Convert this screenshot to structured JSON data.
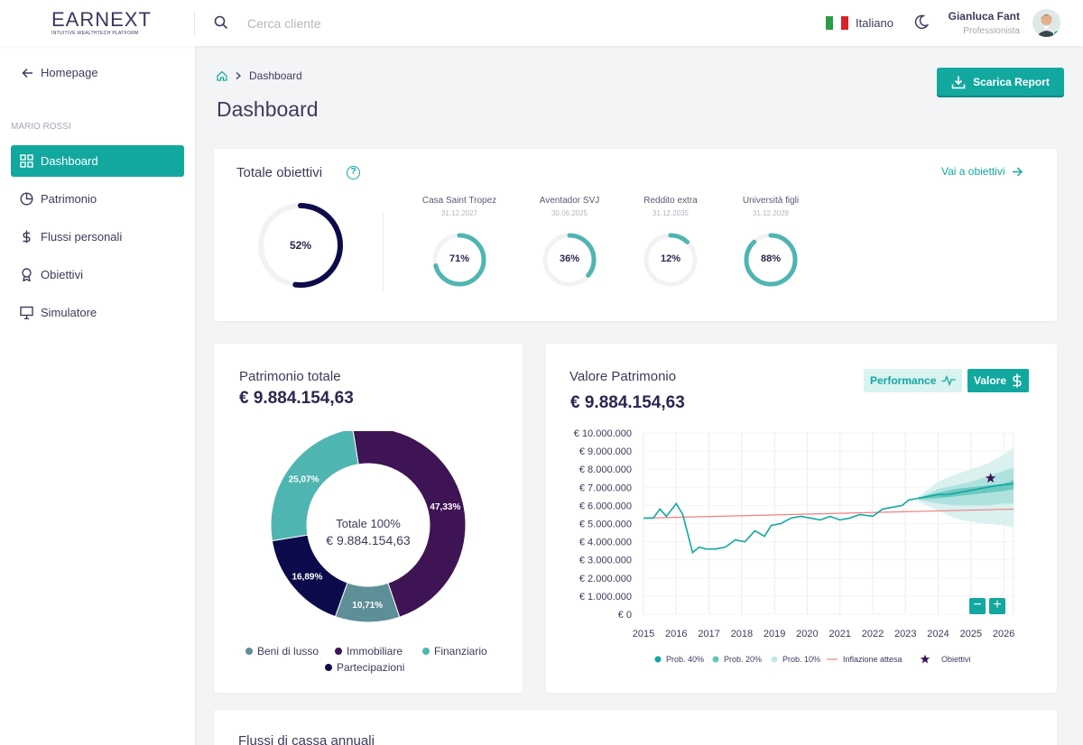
{
  "brand": {
    "name": "EARNEXT",
    "tagline": "INTUITIVE WEALTHTECH PLATFORM"
  },
  "search": {
    "placeholder": "Cerca cliente"
  },
  "header": {
    "language": "Italiano",
    "user_name": "Gianluca Fant",
    "user_role": "Professionista"
  },
  "sidebar": {
    "back_label": "Homepage",
    "client_name": "MARIO ROSSI",
    "items": [
      {
        "label": "Dashboard",
        "icon": "grid-icon",
        "active": true
      },
      {
        "label": "Patrimonio",
        "icon": "pie-icon"
      },
      {
        "label": "Flussi personali",
        "icon": "dollar-icon"
      },
      {
        "label": "Obiettivi",
        "icon": "medal-icon"
      },
      {
        "label": "Simulatore",
        "icon": "monitor-icon"
      }
    ]
  },
  "breadcrumb": {
    "current": "Dashboard"
  },
  "page": {
    "title": "Dashboard",
    "download_label": "Scarica Report"
  },
  "objectives": {
    "title": "Totale obiettivi",
    "link_label": "Vai a obiettivi",
    "total_label": "52%",
    "total_value": 0.52,
    "goals": [
      {
        "name": "Casa Saint Tropez",
        "date": "31.12.2027",
        "label": "71%",
        "value": 0.71
      },
      {
        "name": "Aventador SVJ",
        "date": "30.06.2025",
        "label": "36%",
        "value": 0.36
      },
      {
        "name": "Reddito extra",
        "date": "31.12.2035",
        "label": "12%",
        "value": 0.12
      },
      {
        "name": "Università figli",
        "date": "31.12.2029",
        "label": "88%",
        "value": 0.88
      }
    ]
  },
  "patrimonio": {
    "title": "Patrimonio totale",
    "amount": "€ 9.884.154,63",
    "center_label": "Totale 100%",
    "center_amount": "€ 9.884.154,63",
    "slices": [
      {
        "name": "Immobiliare",
        "label": "47,33%",
        "value": 47.33,
        "color": "#3e1455"
      },
      {
        "name": "Beni di lusso",
        "label": "10,71%",
        "value": 10.71,
        "color": "#5f8f96"
      },
      {
        "name": "Partecipazioni",
        "label": "16,89%",
        "value": 16.89,
        "color": "#0c0a4a"
      },
      {
        "name": "Finanziario",
        "label": "25,07%",
        "value": 25.07,
        "color": "#4fb5b0"
      }
    ],
    "legend": [
      "Beni di lusso",
      "Immobiliare",
      "Finanziario",
      "Partecipazioni"
    ]
  },
  "valore": {
    "title": "Valore Patrimonio",
    "amount": "€ 9.884.154,63",
    "toggle_performance": "Performance",
    "toggle_valore": "Valore"
  },
  "chart_data": {
    "type": "line",
    "y_ticks": [
      "€ 10.000.000",
      "€ 9.000.000",
      "€ 8.000.000",
      "€ 7.000.000",
      "€ 6.000.000",
      "€ 5.000.000",
      "€ 4.000.000",
      "€ 3.000.000",
      "€ 2.000.000",
      "€ 1.000.000",
      "€ 0"
    ],
    "x_ticks": [
      "2015",
      "2016",
      "2017",
      "2018",
      "2019",
      "2020",
      "2021",
      "2022",
      "2023",
      "2024",
      "2025",
      "2026"
    ],
    "ylim": [
      0,
      10000000
    ],
    "xlim": [
      2015,
      2026.3
    ],
    "series": [
      {
        "name": "Inflazione attesa",
        "color": "#f08080",
        "x": [
          2015,
          2026.3
        ],
        "y": [
          5300000,
          5800000
        ]
      },
      {
        "name": "Prob. 40%",
        "color": "#12a89f",
        "x": [
          2015,
          2015.3,
          2015.5,
          2015.7,
          2016.0,
          2016.2,
          2016.5,
          2016.7,
          2016.9,
          2017.2,
          2017.5,
          2017.8,
          2018.1,
          2018.4,
          2018.7,
          2018.9,
          2019.2,
          2019.5,
          2019.8,
          2020.1,
          2020.4,
          2020.7,
          2021.0,
          2021.3,
          2021.6,
          2022.0,
          2022.3,
          2022.6,
          2022.9,
          2023.1,
          2023.4,
          2023.7,
          2024.0,
          2024.3,
          2024.6,
          2024.9,
          2025.2,
          2025.5,
          2025.8,
          2026.3
        ],
        "y": [
          5300000,
          5300000,
          5800000,
          5400000,
          6100000,
          5500000,
          3400000,
          3700000,
          3600000,
          3600000,
          3700000,
          4100000,
          4000000,
          4600000,
          4300000,
          4900000,
          5000000,
          5300000,
          5400000,
          5300000,
          5200000,
          5400000,
          5200000,
          5300000,
          5500000,
          5400000,
          5800000,
          5900000,
          6000000,
          6300000,
          6400000,
          6500000,
          6600000,
          6600000,
          6700000,
          6800000,
          6900000,
          7000000,
          7100000,
          7200000
        ]
      },
      {
        "name": "Prob. 20%",
        "color": "#5fc4bd"
      },
      {
        "name": "Prob. 10%",
        "color": "#bfe9e5"
      },
      {
        "name": "Obiettivi",
        "color": "#3e1455",
        "x": [
          2025.6
        ],
        "y": [
          7500000
        ]
      }
    ],
    "band_x": [
      2023.4,
      2024,
      2024.5,
      2025,
      2025.5,
      2026,
      2026.3
    ],
    "band_outer_low": [
      6200000,
      5700000,
      5300000,
      5100000,
      5000000,
      4900000,
      4800000
    ],
    "band_outer_high": [
      6500000,
      7300000,
      7700000,
      8000000,
      8300000,
      8800000,
      9200000
    ],
    "band_mid_low": [
      6300000,
      6100000,
      6000000,
      6000000,
      6000000,
      6100000,
      6100000
    ],
    "band_mid_high": [
      6400000,
      6900000,
      7100000,
      7300000,
      7600000,
      7900000,
      8100000
    ],
    "band_inner_low": [
      6350000,
      6400000,
      6500000,
      6600000,
      6700000,
      6800000,
      6900000
    ],
    "band_inner_high": [
      6450000,
      6700000,
      6900000,
      7000000,
      7100000,
      7200000,
      7400000
    ],
    "legend_labels": [
      "Prob. 40%",
      "Prob. 20%",
      "Prob. 10%",
      "Inflazione attesa",
      "Obiettivi"
    ]
  },
  "flussi": {
    "title": "Flussi di cassa annuali"
  }
}
